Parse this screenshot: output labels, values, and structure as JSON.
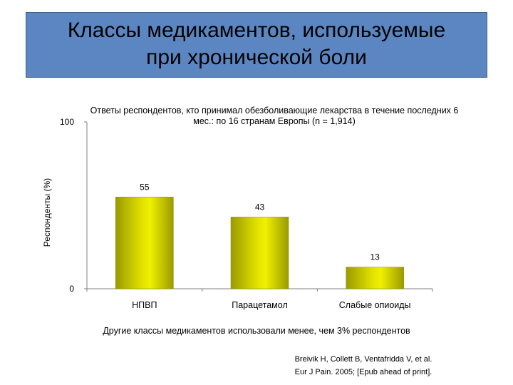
{
  "title": "Классы медикаментов, используемые при хронической боли",
  "note": "Другие классы медикаментов использовали менее, чем 3% респондентов",
  "source": {
    "line1": "Breivik H, Collett B, Ventafridda V, et al.",
    "line2": "Eur J Pain. 2005; [Epub ahead of print]."
  },
  "colors": {
    "title_bg": "#5b86c2",
    "bar_fill": "#e1e100",
    "bar_edge": "#8c8c00"
  },
  "chart_data": {
    "type": "bar",
    "title": "Ответы респондентов, кто принимал обезболивающие лекарства в течение последних 6 мес.: по 16 странам Европы (n = 1,914)",
    "xlabel": "",
    "ylabel": "Респонденты (%)",
    "ylim": [
      0,
      100
    ],
    "yticks": [
      "0",
      "100"
    ],
    "categories": [
      "НПВП",
      "Парацетамол",
      "Слабые опиоиды"
    ],
    "values": [
      55,
      43,
      13
    ],
    "grid": false,
    "legend": "none"
  }
}
